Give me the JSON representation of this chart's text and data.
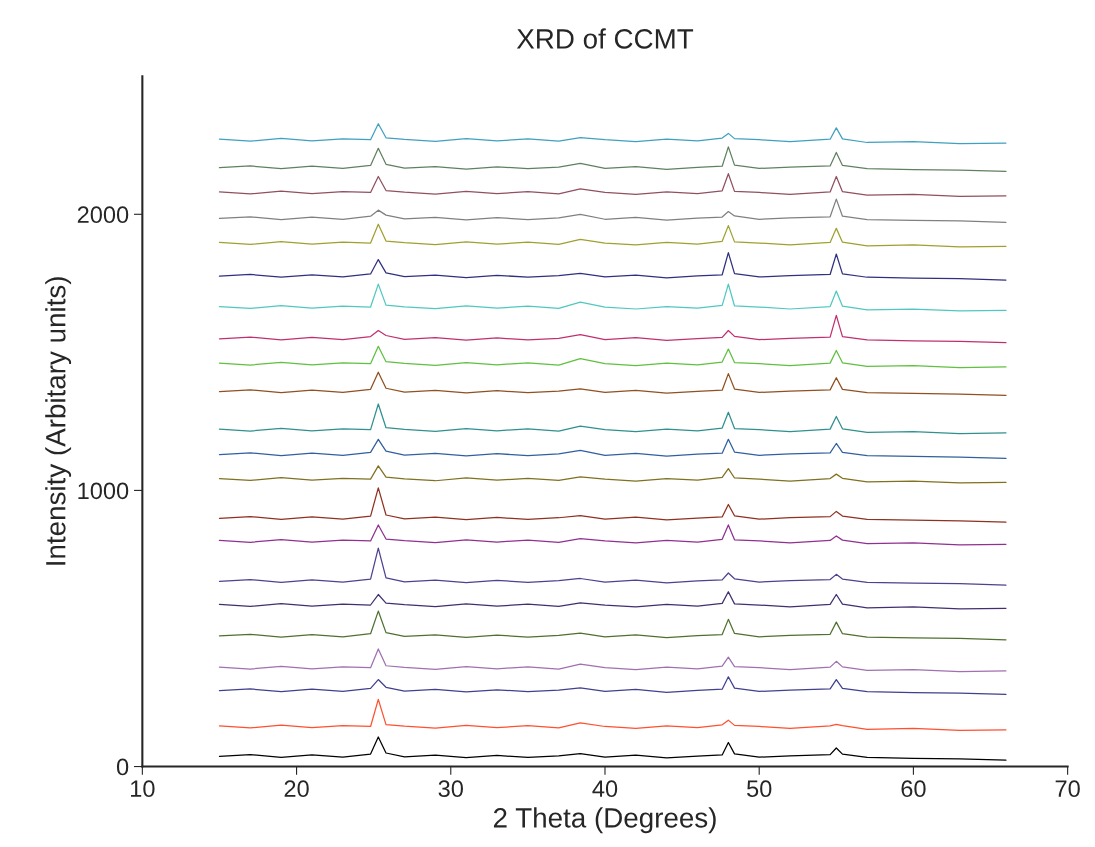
{
  "chart_data": {
    "type": "line",
    "title": "XRD of CCMT",
    "xlabel": "2 Theta (Degrees)",
    "ylabel": "Intensity (Arbitary units)",
    "xlim": [
      10,
      70
    ],
    "xticks": [
      10,
      20,
      30,
      40,
      50,
      60,
      70
    ],
    "ylim": [
      0,
      2500
    ],
    "yticks": [
      0,
      1000,
      2000
    ],
    "grid": false,
    "marker": "none",
    "line_style": "solid",
    "x": [
      15,
      17,
      19,
      21,
      23,
      24.8,
      25.3,
      25.8,
      27,
      29,
      31,
      33,
      35,
      37,
      38.4,
      40,
      42,
      44,
      46,
      47.6,
      48,
      48.4,
      50,
      52,
      54.6,
      55,
      55.4,
      57,
      60,
      63,
      66
    ],
    "series": [
      {
        "color": "#000000",
        "values": [
          37,
          43,
          33,
          42,
          34,
          45,
          107,
          49,
          35,
          41,
          32,
          40,
          33,
          39,
          47,
          34,
          41,
          31,
          38,
          42,
          87,
          46,
          34,
          39,
          43,
          67,
          45,
          33,
          30,
          28,
          23
        ]
      },
      {
        "color": "#ff5030",
        "values": [
          147,
          140,
          150,
          141,
          148,
          145,
          243,
          152,
          146,
          139,
          149,
          141,
          148,
          140,
          158,
          145,
          138,
          147,
          141,
          151,
          168,
          149,
          145,
          138,
          147,
          153,
          148,
          135,
          138,
          131,
          133
        ]
      },
      {
        "color": "#404090",
        "values": [
          275,
          281,
          271,
          280,
          272,
          283,
          315,
          287,
          273,
          279,
          270,
          278,
          271,
          277,
          285,
          272,
          279,
          269,
          276,
          280,
          325,
          284,
          272,
          277,
          281,
          315,
          283,
          271,
          268,
          266,
          261
        ]
      },
      {
        "color": "#a070b0",
        "values": [
          360,
          353,
          363,
          354,
          361,
          358,
          426,
          365,
          359,
          352,
          362,
          354,
          361,
          353,
          371,
          358,
          351,
          360,
          354,
          364,
          396,
          362,
          358,
          351,
          360,
          381,
          361,
          348,
          351,
          344,
          346
        ]
      },
      {
        "color": "#507030",
        "values": [
          473,
          479,
          469,
          478,
          470,
          481,
          563,
          485,
          471,
          477,
          468,
          476,
          469,
          475,
          483,
          470,
          477,
          467,
          474,
          478,
          533,
          482,
          470,
          475,
          479,
          523,
          481,
          469,
          466,
          464,
          459
        ]
      },
      {
        "color": "#403070",
        "values": [
          587,
          580,
          590,
          581,
          588,
          585,
          623,
          592,
          586,
          579,
          589,
          581,
          588,
          580,
          593,
          585,
          578,
          587,
          581,
          591,
          633,
          589,
          585,
          578,
          587,
          623,
          588,
          575,
          578,
          571,
          573
        ]
      },
      {
        "color": "#504090",
        "values": [
          671,
          677,
          667,
          676,
          668,
          679,
          791,
          683,
          669,
          675,
          666,
          674,
          667,
          673,
          681,
          668,
          675,
          665,
          672,
          676,
          701,
          680,
          668,
          673,
          677,
          696,
          679,
          667,
          664,
          662,
          657
        ]
      },
      {
        "color": "#903090",
        "values": [
          819,
          812,
          822,
          813,
          820,
          817,
          875,
          824,
          818,
          811,
          821,
          813,
          820,
          812,
          825,
          817,
          810,
          819,
          813,
          823,
          875,
          821,
          817,
          810,
          819,
          835,
          820,
          807,
          810,
          803,
          805
        ]
      },
      {
        "color": "#903020",
        "values": [
          899,
          905,
          895,
          904,
          896,
          907,
          1009,
          911,
          897,
          903,
          894,
          902,
          895,
          901,
          909,
          896,
          903,
          893,
          900,
          904,
          949,
          908,
          896,
          901,
          905,
          924,
          907,
          895,
          892,
          890,
          885
        ]
      },
      {
        "color": "#807020",
        "values": [
          1043,
          1036,
          1046,
          1037,
          1044,
          1041,
          1089,
          1048,
          1042,
          1035,
          1045,
          1037,
          1044,
          1036,
          1049,
          1041,
          1034,
          1043,
          1037,
          1047,
          1079,
          1045,
          1041,
          1034,
          1043,
          1059,
          1044,
          1031,
          1034,
          1027,
          1029
        ]
      },
      {
        "color": "#3060a0",
        "values": [
          1130,
          1136,
          1126,
          1135,
          1127,
          1138,
          1185,
          1142,
          1128,
          1134,
          1125,
          1133,
          1126,
          1132,
          1145,
          1127,
          1134,
          1124,
          1131,
          1135,
          1185,
          1139,
          1127,
          1132,
          1136,
          1170,
          1138,
          1126,
          1123,
          1121,
          1116
        ]
      },
      {
        "color": "#309090",
        "values": [
          1222,
          1215,
          1225,
          1216,
          1223,
          1220,
          1313,
          1227,
          1221,
          1214,
          1224,
          1216,
          1223,
          1215,
          1233,
          1220,
          1213,
          1222,
          1216,
          1226,
          1283,
          1224,
          1220,
          1213,
          1222,
          1268,
          1223,
          1210,
          1213,
          1206,
          1208
        ]
      },
      {
        "color": "#905020",
        "values": [
          1358,
          1364,
          1354,
          1363,
          1355,
          1366,
          1428,
          1370,
          1356,
          1362,
          1353,
          1361,
          1354,
          1360,
          1368,
          1355,
          1362,
          1352,
          1359,
          1363,
          1423,
          1367,
          1355,
          1360,
          1364,
          1408,
          1366,
          1354,
          1351,
          1349,
          1344
        ]
      },
      {
        "color": "#60c040",
        "values": [
          1461,
          1454,
          1464,
          1455,
          1462,
          1459,
          1522,
          1466,
          1460,
          1453,
          1463,
          1455,
          1462,
          1454,
          1477,
          1459,
          1452,
          1461,
          1455,
          1465,
          1512,
          1463,
          1459,
          1452,
          1461,
          1507,
          1462,
          1449,
          1452,
          1445,
          1447
        ]
      },
      {
        "color": "#c03070",
        "values": [
          1549,
          1555,
          1545,
          1554,
          1546,
          1557,
          1579,
          1561,
          1547,
          1553,
          1544,
          1552,
          1545,
          1551,
          1564,
          1546,
          1553,
          1543,
          1550,
          1554,
          1579,
          1558,
          1546,
          1551,
          1555,
          1634,
          1557,
          1545,
          1542,
          1540,
          1535
        ]
      },
      {
        "color": "#50c8c0",
        "values": [
          1666,
          1659,
          1669,
          1660,
          1667,
          1664,
          1747,
          1671,
          1665,
          1658,
          1668,
          1660,
          1667,
          1659,
          1682,
          1664,
          1657,
          1666,
          1660,
          1670,
          1747,
          1668,
          1664,
          1657,
          1666,
          1722,
          1667,
          1654,
          1657,
          1650,
          1652
        ]
      },
      {
        "color": "#303080",
        "values": [
          1776,
          1782,
          1772,
          1781,
          1773,
          1784,
          1836,
          1788,
          1774,
          1780,
          1771,
          1779,
          1772,
          1778,
          1786,
          1773,
          1780,
          1770,
          1777,
          1781,
          1861,
          1785,
          1773,
          1778,
          1782,
          1856,
          1784,
          1772,
          1769,
          1767,
          1762
        ]
      },
      {
        "color": "#a0a030",
        "values": [
          1898,
          1891,
          1901,
          1892,
          1899,
          1896,
          1964,
          1903,
          1897,
          1890,
          1900,
          1892,
          1899,
          1891,
          1909,
          1896,
          1889,
          1898,
          1892,
          1902,
          1959,
          1900,
          1896,
          1889,
          1898,
          1949,
          1899,
          1886,
          1889,
          1882,
          1884
        ]
      },
      {
        "color": "#808080",
        "values": [
          1985,
          1991,
          1981,
          1990,
          1982,
          1993,
          2015,
          1997,
          1983,
          1989,
          1980,
          1988,
          1981,
          1987,
          2000,
          1982,
          1989,
          1979,
          1986,
          1990,
          2010,
          1994,
          1982,
          1987,
          1991,
          2055,
          1993,
          1981,
          1978,
          1976,
          1971
        ]
      },
      {
        "color": "#905060",
        "values": [
          2081,
          2074,
          2084,
          2075,
          2082,
          2079,
          2137,
          2086,
          2080,
          2073,
          2083,
          2075,
          2082,
          2074,
          2092,
          2079,
          2072,
          2081,
          2075,
          2085,
          2147,
          2083,
          2079,
          2072,
          2081,
          2137,
          2082,
          2069,
          2072,
          2065,
          2067
        ]
      },
      {
        "color": "#608060",
        "values": [
          2169,
          2175,
          2165,
          2174,
          2166,
          2177,
          2239,
          2181,
          2167,
          2173,
          2164,
          2172,
          2165,
          2171,
          2184,
          2166,
          2173,
          2163,
          2170,
          2174,
          2244,
          2178,
          2166,
          2171,
          2175,
          2224,
          2177,
          2165,
          2162,
          2160,
          2155
        ]
      },
      {
        "color": "#40a0c0",
        "values": [
          2272,
          2265,
          2275,
          2266,
          2273,
          2270,
          2328,
          2277,
          2271,
          2264,
          2274,
          2266,
          2273,
          2265,
          2278,
          2270,
          2263,
          2272,
          2266,
          2276,
          2293,
          2274,
          2270,
          2263,
          2272,
          2313,
          2273,
          2260,
          2263,
          2256,
          2258
        ]
      }
    ]
  }
}
